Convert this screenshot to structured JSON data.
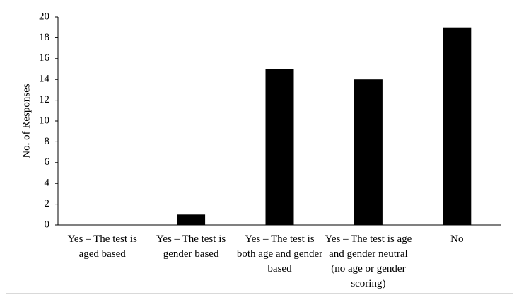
{
  "chart_data": {
    "type": "bar",
    "y_label": "No. of Responses",
    "categories": [
      "Yes – The test is aged based",
      "Yes – The test is gender based",
      "Yes – The test is both age and gender based",
      "Yes – The test is age and gender neutral (no age or gender scoring)",
      "No"
    ],
    "values": [
      0,
      1,
      15,
      14,
      19
    ],
    "color": "#000000",
    "ylim": [
      0,
      20
    ],
    "yticks": [
      0,
      2,
      4,
      6,
      8,
      10,
      12,
      14,
      16,
      18,
      20
    ],
    "grid": false
  }
}
